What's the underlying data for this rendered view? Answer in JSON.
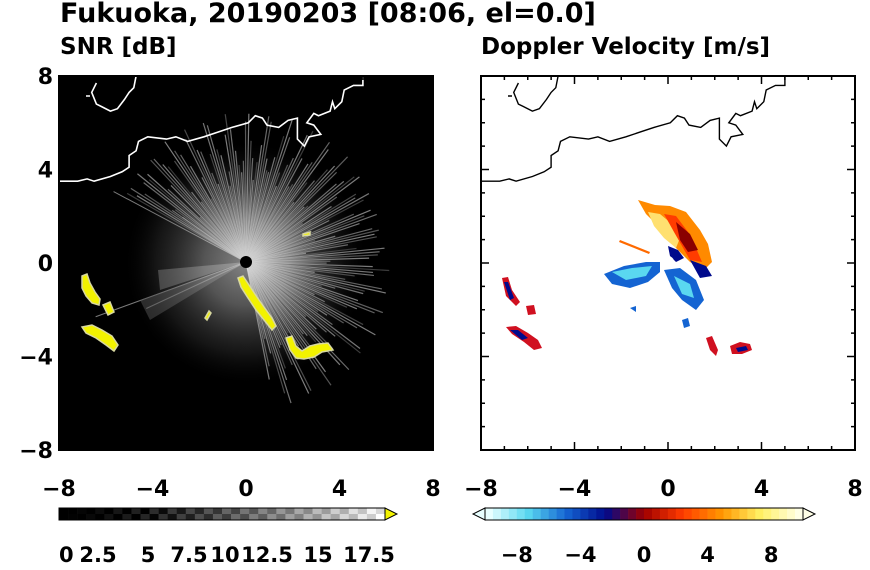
{
  "title": "Fukuoka, 20190203 [08:06, el=0.0]",
  "chart_data": [
    {
      "type": "heatmap",
      "title": "SNR [dB]",
      "xlim": [
        -8,
        8
      ],
      "ylim": [
        -8,
        8
      ],
      "x_ticks": [
        -8,
        -4,
        0,
        4,
        8
      ],
      "y_ticks": [
        -8,
        -4,
        0,
        4,
        8
      ],
      "x_tick_labels": [
        "−8",
        "−4",
        "0",
        "4",
        "8"
      ],
      "y_tick_labels": [
        "−8",
        "−4",
        "0",
        "4",
        "8"
      ],
      "background": "#000000",
      "colorbar": {
        "min": 0,
        "max": 18,
        "extend": "max",
        "tick_labels": [
          "0",
          "2.5",
          "5",
          "7.5",
          "10",
          "12.5",
          "15",
          "17.5"
        ],
        "colors": [
          "#000000",
          "#ffffff",
          "#f2f200"
        ]
      },
      "echo_regions": [
        {
          "label": "west band",
          "x": [
            -7.1,
            -5.6
          ],
          "y": [
            -0.8,
            -3.6
          ],
          "snr": 17.5
        },
        {
          "label": "south-east band",
          "x": [
            -0.3,
            3.7
          ],
          "y": [
            -0.8,
            -3.9
          ],
          "snr": 17.5
        }
      ]
    },
    {
      "type": "heatmap",
      "title": "Doppler Velocity [m/s]",
      "xlim": [
        -8,
        8
      ],
      "ylim": [
        -8,
        8
      ],
      "x_ticks": [
        -8,
        -4,
        0,
        4,
        8
      ],
      "y_ticks": [
        -8,
        -4,
        0,
        4,
        8
      ],
      "x_tick_labels": [
        "−8",
        "−4",
        "0",
        "4",
        "8"
      ],
      "y_tick_labels": [
        "−8",
        "−4",
        "0",
        "4",
        "8"
      ],
      "background": "#ffffff",
      "colorbar": {
        "min": -10,
        "max": 10,
        "extend": "both",
        "ticks": [
          -8,
          -4,
          0,
          4,
          8
        ],
        "tick_labels": [
          "−8",
          "−4",
          "0",
          "4",
          "8"
        ],
        "colors": [
          "#e8ffff",
          "#5ad8f0",
          "#1464d2",
          "#000a8c",
          "#a00000",
          "#ff3c00",
          "#ff9600",
          "#fff064",
          "#ffffe6"
        ]
      }
    }
  ]
}
